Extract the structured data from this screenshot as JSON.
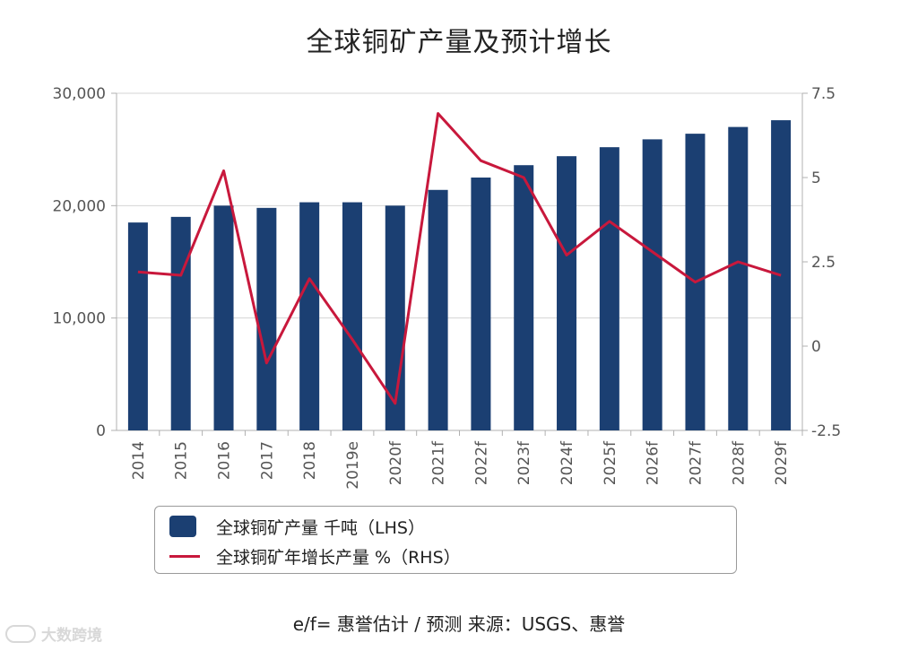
{
  "chart_data": {
    "type": "bar",
    "title": "全球铜矿产量及预计增长",
    "categories": [
      "2014",
      "2015",
      "2016",
      "2017",
      "2018",
      "2019e",
      "2020f",
      "2021f",
      "2022f",
      "2023f",
      "2024f",
      "2025f",
      "2026f",
      "2027f",
      "2028f",
      "2029f"
    ],
    "series": [
      {
        "name": "全球铜矿产量 千吨（LHS）",
        "type": "bar",
        "axis": "left",
        "color": "#1b3f72",
        "values": [
          18500,
          19000,
          20000,
          19800,
          20300,
          20300,
          20000,
          21400,
          22500,
          23600,
          24400,
          25200,
          25900,
          26400,
          27000,
          27600
        ]
      },
      {
        "name": "全球铜矿年增长产量 %（RHS）",
        "type": "line",
        "axis": "right",
        "color": "#c8183c",
        "values": [
          2.2,
          2.1,
          5.2,
          -0.5,
          2.0,
          0.2,
          -1.7,
          6.9,
          5.5,
          5.0,
          2.7,
          3.7,
          2.8,
          1.9,
          2.5,
          2.1
        ]
      }
    ],
    "y_left": {
      "min": 0,
      "max": 30000,
      "ticks": [
        "0",
        "10,000",
        "20,000",
        "30,000"
      ],
      "tick_values": [
        0,
        10000,
        20000,
        30000
      ]
    },
    "y_right": {
      "min": -2.5,
      "max": 7.5,
      "ticks": [
        "-2.5",
        "0",
        "2.5",
        "5",
        "7.5"
      ],
      "tick_values": [
        -2.5,
        0,
        2.5,
        5,
        7.5
      ]
    },
    "grid": "horizontal",
    "legend_position": "bottom"
  },
  "legend": {
    "bar_label": "全球铜矿产量 千吨（LHS）",
    "line_label": "全球铜矿年增长产量 %（RHS）"
  },
  "source": "e/f= 惠誉估计 / 预测 来源：USGS、惠誉",
  "watermark": "大数跨境",
  "colors": {
    "bar": "#1b3f72",
    "line": "#c8183c",
    "grid": "#d4d4d4",
    "axis_text": "#555555"
  }
}
